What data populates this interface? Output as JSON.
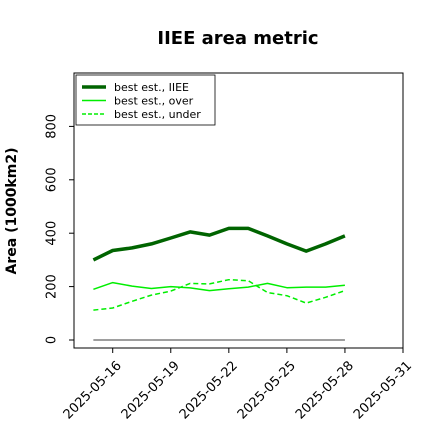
{
  "chart_data": {
    "type": "line",
    "title": "IIEE area metric",
    "xlabel": "",
    "ylabel": "Area (1000km2)",
    "x": [
      "2025-05-15",
      "2025-05-16",
      "2025-05-17",
      "2025-05-18",
      "2025-05-19",
      "2025-05-20",
      "2025-05-21",
      "2025-05-22",
      "2025-05-23",
      "2025-05-24",
      "2025-05-25",
      "2025-05-26",
      "2025-05-27",
      "2025-05-28"
    ],
    "x_ticks": [
      "2025-05-16",
      "2025-05-19",
      "2025-05-22",
      "2025-05-25",
      "2025-05-28",
      "2025-05-31"
    ],
    "xlim": [
      "2025-05-14",
      "2025-05-31"
    ],
    "ylim": [
      -30,
      1000
    ],
    "y_ticks": [
      0,
      200,
      400,
      600,
      800
    ],
    "grid": false,
    "legend_position": "top-left",
    "series": [
      {
        "name": "best est., IIEE",
        "color": "#006400",
        "style": "solid-thick",
        "values": [
          300,
          335,
          345,
          360,
          382,
          405,
          393,
          418,
          418,
          390,
          360,
          333,
          360,
          390
        ]
      },
      {
        "name": "best est., over",
        "color": "#00ee00",
        "style": "solid",
        "values": [
          190,
          215,
          202,
          193,
          200,
          195,
          185,
          192,
          198,
          212,
          196,
          198,
          198,
          205
        ]
      },
      {
        "name": "best est., under",
        "color": "#00ee00",
        "style": "dashed",
        "values": [
          112,
          120,
          145,
          168,
          183,
          212,
          210,
          226,
          222,
          178,
          166,
          138,
          160,
          185
        ]
      }
    ],
    "baseline": {
      "color": "#7f7f7f",
      "value": 0,
      "x_range": [
        "2025-05-15",
        "2025-05-28"
      ]
    }
  }
}
